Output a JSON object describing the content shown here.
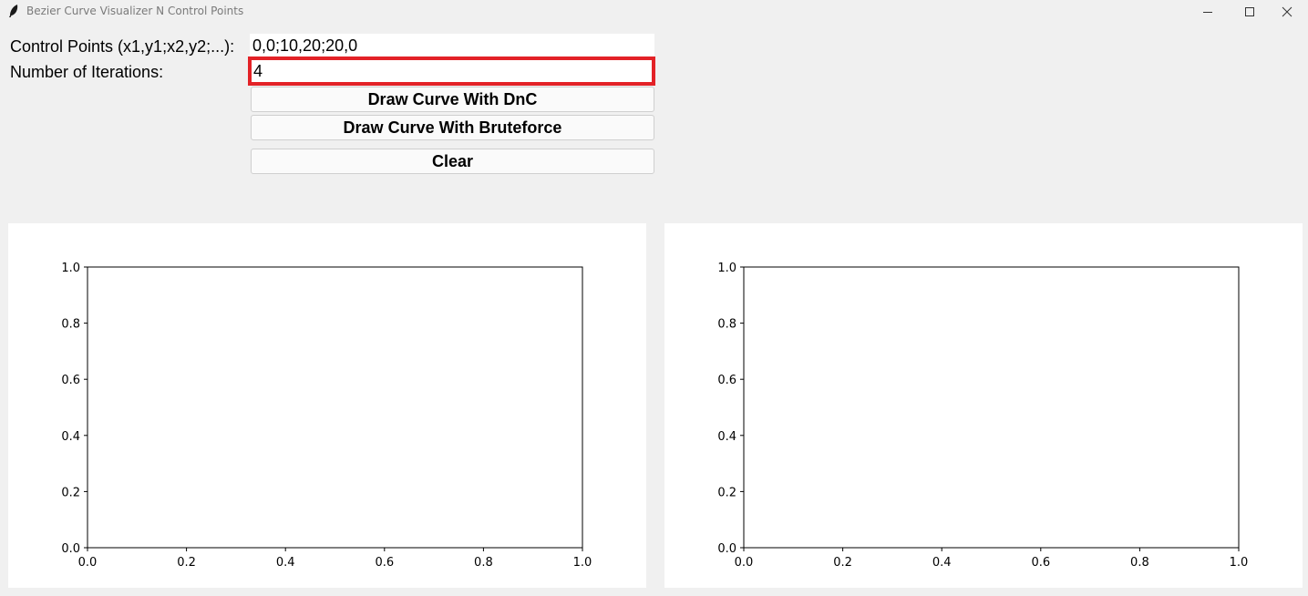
{
  "window": {
    "title": "Bezier Curve Visualizer N Control Points"
  },
  "form": {
    "control_points_label": "Control Points (x1,y1;x2,y2;...):",
    "control_points_value": "0,0;10,20;20,0",
    "iterations_label": "Number of Iterations:",
    "iterations_value": "4",
    "buttons": {
      "dnc": "Draw Curve With DnC",
      "bruteforce": "Draw Curve With Bruteforce",
      "clear": "Clear"
    },
    "focus_highlight_color": "#e32227"
  },
  "chart_data": [
    {
      "type": "line",
      "title": "",
      "xlabel": "",
      "ylabel": "",
      "xlim": [
        0.0,
        1.0
      ],
      "ylim": [
        0.0,
        1.0
      ],
      "x_ticks": [
        "0.0",
        "0.2",
        "0.4",
        "0.6",
        "0.8",
        "1.0"
      ],
      "y_ticks": [
        "0.0",
        "0.2",
        "0.4",
        "0.6",
        "0.8",
        "1.0"
      ],
      "series": []
    },
    {
      "type": "line",
      "title": "",
      "xlabel": "",
      "ylabel": "",
      "xlim": [
        0.0,
        1.0
      ],
      "ylim": [
        0.0,
        1.0
      ],
      "x_ticks": [
        "0.0",
        "0.2",
        "0.4",
        "0.6",
        "0.8",
        "1.0"
      ],
      "y_ticks": [
        "0.0",
        "0.2",
        "0.4",
        "0.6",
        "0.8",
        "1.0"
      ],
      "series": []
    }
  ]
}
